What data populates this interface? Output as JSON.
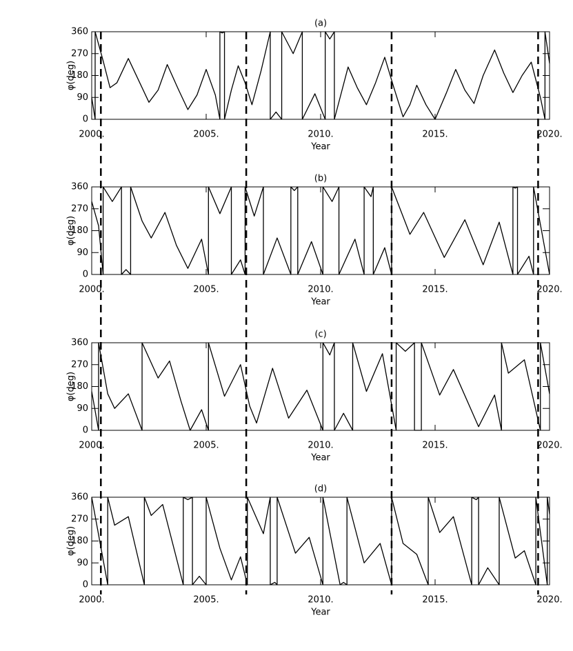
{
  "chart_data": [
    {
      "type": "line",
      "title": "(a)",
      "xlabel": "Year",
      "ylabel": "φ(deg)",
      "color": "#000000",
      "xlim": [
        2000,
        2020
      ],
      "ylim": [
        0,
        360
      ],
      "yticks": [
        0,
        90,
        180,
        270,
        360
      ],
      "xticks": [
        {
          "value": 2000,
          "label": "2000."
        },
        {
          "value": 2005,
          "label": "2005."
        },
        {
          "value": 2010,
          "label": "2010."
        },
        {
          "value": 2015,
          "label": "2015."
        },
        {
          "value": 2020,
          "label": "2020."
        }
      ],
      "x": [
        2000,
        2000.15,
        2000.15,
        2000.5,
        2000.8,
        2001.1,
        2001.6,
        2002.1,
        2002.5,
        2002.9,
        2003.3,
        2003.8,
        2004.2,
        2004.6,
        2005,
        2005.4,
        2005.6,
        2005.6,
        2005.7,
        2005.8,
        2005.8,
        2006.1,
        2006.4,
        2006.7,
        2007,
        2007.4,
        2007.8,
        2007.8,
        2008.05,
        2008.3,
        2008.3,
        2008.8,
        2009.2,
        2009.2,
        2009.75,
        2010.2,
        2010.2,
        2010.4,
        2010.6,
        2010.6,
        2011.2,
        2011.6,
        2012,
        2012.4,
        2012.8,
        2013.2,
        2013.6,
        2013.9,
        2014.2,
        2014.6,
        2015,
        2015.5,
        2015.9,
        2016.3,
        2016.7,
        2017.1,
        2017.6,
        2018,
        2018.4,
        2018.8,
        2019.2,
        2019.6,
        2019.8,
        2019.8,
        2020
      ],
      "values": [
        90,
        0,
        360,
        240,
        130,
        150,
        250,
        150,
        70,
        120,
        225,
        120,
        40,
        100,
        205,
        100,
        0,
        360,
        355,
        360,
        0,
        120,
        220,
        150,
        60,
        200,
        360,
        0,
        30,
        0,
        360,
        270,
        360,
        0,
        105,
        0,
        360,
        330,
        360,
        0,
        215,
        130,
        60,
        150,
        255,
        130,
        10,
        60,
        140,
        60,
        0,
        110,
        205,
        120,
        65,
        180,
        285,
        190,
        110,
        180,
        235,
        90,
        0,
        360,
        230
      ]
    },
    {
      "type": "line",
      "title": "(b)",
      "xlabel": "Year",
      "ylabel": "φ(deg)",
      "color": "#000000",
      "xlim": [
        2000,
        2020
      ],
      "ylim": [
        0,
        360
      ],
      "yticks": [
        0,
        90,
        180,
        270,
        360
      ],
      "xticks": [
        {
          "value": 2000,
          "label": "2000."
        },
        {
          "value": 2005,
          "label": "2005."
        },
        {
          "value": 2010,
          "label": "2010."
        },
        {
          "value": 2015,
          "label": "2015."
        },
        {
          "value": 2020,
          "label": "2020."
        }
      ],
      "x": [
        2000,
        2000.3,
        2000.5,
        2000.5,
        2000.9,
        2001.3,
        2001.3,
        2001.5,
        2001.7,
        2001.7,
        2002.2,
        2002.6,
        2003.2,
        2003.7,
        2004.2,
        2004.8,
        2005.1,
        2005.1,
        2005.6,
        2006.1,
        2006.1,
        2006.5,
        2006.7,
        2006.7,
        2007.1,
        2007.5,
        2007.5,
        2008.1,
        2008.7,
        2008.7,
        2008.85,
        2009,
        2009,
        2009.6,
        2010.1,
        2010.1,
        2010.5,
        2010.8,
        2010.8,
        2011.5,
        2011.9,
        2011.9,
        2012.2,
        2012.3,
        2012.3,
        2012.8,
        2013.1,
        2013.1,
        2013.9,
        2014.5,
        2015.4,
        2016.3,
        2017.1,
        2017.8,
        2018.4,
        2018.4,
        2018.5,
        2018.6,
        2018.6,
        2019.1,
        2019.3,
        2019.3,
        2020
      ],
      "values": [
        300,
        200,
        0,
        360,
        300,
        360,
        0,
        20,
        0,
        360,
        220,
        150,
        255,
        120,
        25,
        145,
        0,
        360,
        250,
        360,
        0,
        60,
        0,
        360,
        240,
        360,
        0,
        150,
        0,
        360,
        345,
        360,
        0,
        135,
        0,
        360,
        300,
        360,
        0,
        145,
        0,
        360,
        320,
        360,
        0,
        110,
        0,
        360,
        165,
        255,
        70,
        225,
        40,
        215,
        0,
        360,
        355,
        360,
        0,
        75,
        0,
        360,
        0
      ]
    },
    {
      "type": "line",
      "title": "(c)",
      "xlabel": "Year",
      "ylabel": "φ(deg)",
      "color": "#000000",
      "xlim": [
        2000,
        2020
      ],
      "ylim": [
        0,
        360
      ],
      "yticks": [
        0,
        90,
        180,
        270,
        360
      ],
      "xticks": [
        {
          "value": 2000,
          "label": "2000."
        },
        {
          "value": 2005,
          "label": "2005."
        },
        {
          "value": 2010,
          "label": "2010."
        },
        {
          "value": 2015,
          "label": "2015."
        },
        {
          "value": 2020,
          "label": "2020."
        }
      ],
      "x": [
        2000,
        2000.3,
        2000.3,
        2000.7,
        2001,
        2001.6,
        2002.2,
        2002.2,
        2002.9,
        2003.4,
        2003.9,
        2004.3,
        2004.8,
        2005.1,
        2005.1,
        2005.8,
        2006.5,
        2006.9,
        2007.2,
        2007.9,
        2008.6,
        2009.4,
        2010.1,
        2010.1,
        2010.4,
        2010.6,
        2010.6,
        2011,
        2011.4,
        2011.4,
        2012,
        2012.7,
        2013.3,
        2013.3,
        2013.7,
        2014.1,
        2014.1,
        2014.4,
        2014.4,
        2015.2,
        2015.8,
        2016.9,
        2017.6,
        2017.9,
        2017.9,
        2018.2,
        2018.9,
        2019.6,
        2019.6,
        2020
      ],
      "values": [
        160,
        0,
        360,
        150,
        90,
        150,
        0,
        360,
        215,
        285,
        120,
        0,
        85,
        0,
        360,
        140,
        270,
        100,
        30,
        255,
        50,
        165,
        0,
        360,
        310,
        360,
        0,
        70,
        0,
        360,
        160,
        315,
        0,
        360,
        325,
        360,
        0,
        0,
        360,
        145,
        250,
        15,
        145,
        0,
        360,
        235,
        290,
        0,
        360,
        150
      ]
    },
    {
      "type": "line",
      "title": "(d)",
      "xlabel": "Year",
      "ylabel": "φ(deg)",
      "color": "#000000",
      "xlim": [
        2000,
        2020
      ],
      "ylim": [
        0,
        360
      ],
      "yticks": [
        0,
        90,
        180,
        270,
        360
      ],
      "xticks": [
        {
          "value": 2000,
          "label": "2000."
        },
        {
          "value": 2005,
          "label": "2005."
        },
        {
          "value": 2010,
          "label": "2010."
        },
        {
          "value": 2015,
          "label": "2015."
        },
        {
          "value": 2020,
          "label": "2020."
        }
      ],
      "x": [
        2000,
        2000.7,
        2000.7,
        2001,
        2001.6,
        2002.3,
        2002.3,
        2002.6,
        2003.1,
        2004,
        2004,
        2004.2,
        2004.4,
        2004.4,
        2004.7,
        2005,
        2005,
        2005.6,
        2006.1,
        2006.5,
        2006.8,
        2006.8,
        2007.5,
        2007.8,
        2007.8,
        2008,
        2008.1,
        2008.1,
        2008.9,
        2009.5,
        2010.1,
        2010.1,
        2010.85,
        2011,
        2011.15,
        2011.15,
        2011.9,
        2012.6,
        2013.1,
        2013.1,
        2013.6,
        2014.2,
        2014.7,
        2014.7,
        2015.2,
        2015.8,
        2016.6,
        2016.6,
        2016.8,
        2016.9,
        2016.9,
        2017.3,
        2017.8,
        2017.8,
        2018.5,
        2018.9,
        2019.4,
        2019.4,
        2019.9,
        2019.9,
        2020
      ],
      "values": [
        360,
        0,
        360,
        245,
        280,
        0,
        360,
        285,
        330,
        0,
        360,
        350,
        360,
        0,
        35,
        0,
        360,
        150,
        20,
        115,
        0,
        360,
        210,
        360,
        0,
        10,
        0,
        360,
        130,
        195,
        0,
        360,
        0,
        10,
        0,
        360,
        90,
        170,
        0,
        360,
        170,
        125,
        0,
        360,
        215,
        280,
        0,
        360,
        350,
        360,
        0,
        70,
        0,
        360,
        110,
        140,
        0,
        360,
        0,
        360,
        290
      ]
    }
  ],
  "dashed_lines": [
    2000.4,
    2006.75,
    2013.1,
    2019.5
  ]
}
